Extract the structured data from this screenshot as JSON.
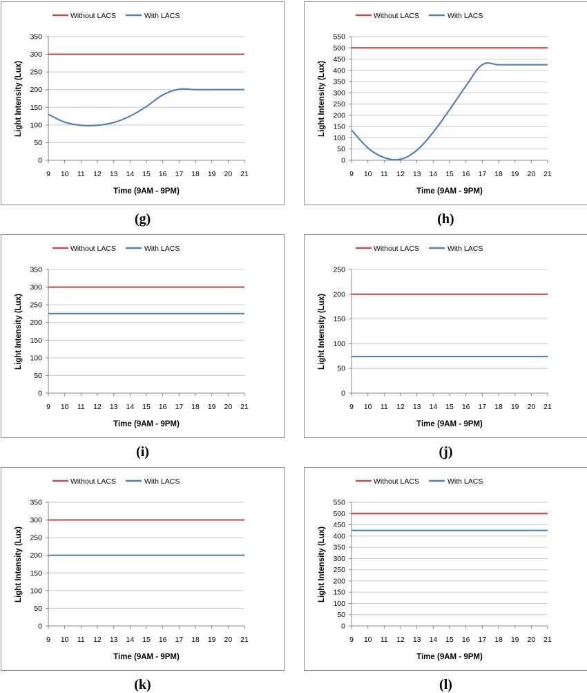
{
  "legend": {
    "without": "Without LACS",
    "with": "With LACS"
  },
  "colors": {
    "without": "#c0504d",
    "with": "#4f81bd",
    "grid": "#c8c8c8",
    "axis": "#868686",
    "text": "#000000"
  },
  "chart_data": [
    {
      "type": "line",
      "caption": "(g)",
      "xlabel": "Time (9AM - 9PM)",
      "ylabel": "Light Intensity (Lux)",
      "x": [
        9,
        10,
        11,
        12,
        13,
        14,
        15,
        16,
        17,
        18,
        19,
        20,
        21
      ],
      "ylim": [
        0,
        350
      ],
      "ystep": 50,
      "series": [
        {
          "name": "Without LACS",
          "values": [
            300,
            300,
            300,
            300,
            300,
            300,
            300,
            300,
            300,
            300,
            300,
            300,
            300
          ]
        },
        {
          "name": "With LACS",
          "values": [
            130,
            108,
            99,
            99,
            107,
            125,
            152,
            185,
            201,
            200,
            200,
            200,
            200
          ]
        }
      ]
    },
    {
      "type": "line",
      "caption": "(h)",
      "xlabel": "Time (9AM - 9PM)",
      "ylabel": "Light Intensity (Lux)",
      "x": [
        9,
        10,
        11,
        12,
        13,
        14,
        15,
        16,
        17,
        18,
        19,
        20,
        21
      ],
      "ylim": [
        0,
        550
      ],
      "ystep": 50,
      "series": [
        {
          "name": "Without LACS",
          "values": [
            500,
            500,
            500,
            500,
            500,
            500,
            500,
            500,
            500,
            500,
            500,
            500,
            500
          ]
        },
        {
          "name": "With LACS",
          "values": [
            135,
            55,
            12,
            5,
            45,
            125,
            225,
            330,
            425,
            425,
            425,
            425,
            425
          ]
        }
      ]
    },
    {
      "type": "line",
      "caption": "(i)",
      "xlabel": "Time (9AM - 9PM)",
      "ylabel": "Light Intensity (Lux)",
      "x": [
        9,
        10,
        11,
        12,
        13,
        14,
        15,
        16,
        17,
        18,
        19,
        20,
        21
      ],
      "ylim": [
        0,
        350
      ],
      "ystep": 50,
      "series": [
        {
          "name": "Without LACS",
          "values": [
            300,
            300,
            300,
            300,
            300,
            300,
            300,
            300,
            300,
            300,
            300,
            300,
            300
          ]
        },
        {
          "name": "With LACS",
          "values": [
            225,
            225,
            225,
            225,
            225,
            225,
            225,
            225,
            225,
            225,
            225,
            225,
            225
          ]
        }
      ]
    },
    {
      "type": "line",
      "caption": "(j)",
      "xlabel": "Time (9AM - 9PM)",
      "ylabel": "Light Intensity (Lux)",
      "x": [
        9,
        10,
        11,
        12,
        13,
        14,
        15,
        16,
        17,
        18,
        19,
        20,
        21
      ],
      "ylim": [
        0,
        250
      ],
      "ystep": 50,
      "series": [
        {
          "name": "Without LACS",
          "values": [
            200,
            200,
            200,
            200,
            200,
            200,
            200,
            200,
            200,
            200,
            200,
            200,
            200
          ]
        },
        {
          "name": "With LACS",
          "values": [
            74,
            74,
            74,
            74,
            74,
            74,
            74,
            74,
            74,
            74,
            74,
            74,
            74
          ]
        }
      ]
    },
    {
      "type": "line",
      "caption": "(k)",
      "xlabel": "Time (9AM - 9PM)",
      "ylabel": "Light Intensity (Lux)",
      "x": [
        9,
        10,
        11,
        12,
        13,
        14,
        15,
        16,
        17,
        18,
        19,
        20,
        21
      ],
      "ylim": [
        0,
        350
      ],
      "ystep": 50,
      "series": [
        {
          "name": "Without LACS",
          "values": [
            300,
            300,
            300,
            300,
            300,
            300,
            300,
            300,
            300,
            300,
            300,
            300,
            300
          ]
        },
        {
          "name": "With LACS",
          "values": [
            200,
            200,
            200,
            200,
            200,
            200,
            200,
            200,
            200,
            200,
            200,
            200,
            200
          ]
        }
      ]
    },
    {
      "type": "line",
      "caption": "(l)",
      "xlabel": "Time (9AM - 9PM)",
      "ylabel": "Light Intensity (Lux)",
      "x": [
        9,
        10,
        11,
        12,
        13,
        14,
        15,
        16,
        17,
        18,
        19,
        20,
        21
      ],
      "ylim": [
        0,
        550
      ],
      "ystep": 50,
      "series": [
        {
          "name": "Without LACS",
          "values": [
            500,
            500,
            500,
            500,
            500,
            500,
            500,
            500,
            500,
            500,
            500,
            500,
            500
          ]
        },
        {
          "name": "With LACS",
          "values": [
            425,
            425,
            425,
            425,
            425,
            425,
            425,
            425,
            425,
            425,
            425,
            425,
            425
          ]
        }
      ]
    }
  ]
}
